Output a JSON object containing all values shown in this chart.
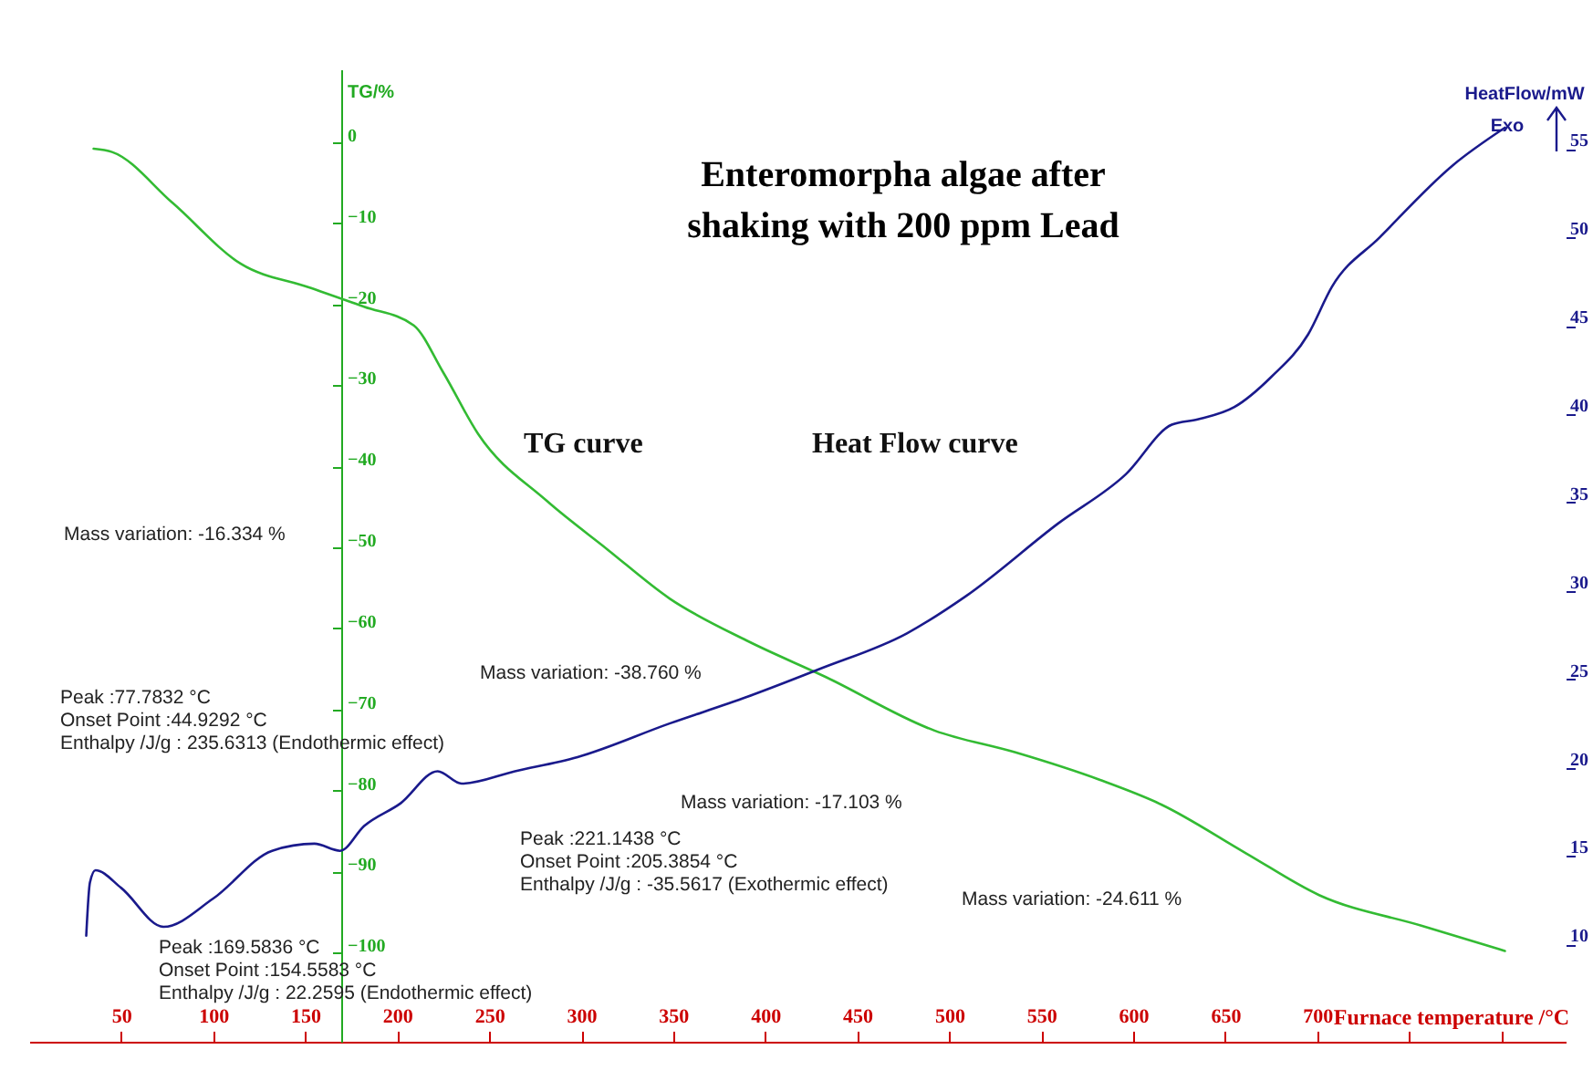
{
  "chart_data": {
    "type": "line",
    "title": "Enteromorpha algae after\nshaking with 200 ppm Lead",
    "xlabel": "Furnace temperature /°C",
    "ylabel": "TG/%",
    "y2label": "HeatFlow/mW",
    "xlim": [
      0,
      835
    ],
    "xticks": [
      50,
      100,
      150,
      200,
      250,
      300,
      350,
      400,
      450,
      500,
      550,
      600,
      650,
      700,
      {
        "value": 750,
        "label": null
      },
      {
        "value": 800,
        "label": null
      }
    ],
    "ylim": [
      -111,
      9
    ],
    "yticks": [
      0,
      -10,
      -20,
      -30,
      -40,
      -50,
      -60,
      -70,
      -80,
      -90,
      -100
    ],
    "y2lim": [
      4.5,
      59.5
    ],
    "y2ticks": [
      10,
      15,
      20,
      25,
      30,
      35,
      40,
      45,
      50,
      55
    ],
    "series": [
      {
        "name": "TG curve",
        "color": "#33bb33",
        "x": [
          35,
          45,
          78,
          115,
          152,
          182,
          209,
          225,
          244,
          281,
          314,
          348,
          390,
          433,
          492,
          536,
          582,
          615,
          661,
          701,
          757,
          802
        ],
        "values": [
          -0.8,
          -1.2,
          -7.5,
          -15,
          -17.9,
          -20.3,
          -22.6,
          -28.4,
          -36,
          -44.2,
          -50.2,
          -56.3,
          -61.5,
          -66,
          -72.6,
          -75.3,
          -78.7,
          -81.7,
          -87.7,
          -92.9,
          -96.7,
          -99.8
        ]
      },
      {
        "name": "Heat Flow curve",
        "color": "#1a1a8c",
        "axis": "y2",
        "x": [
          31,
          33,
          36,
          50,
          73,
          100,
          132,
          155,
          169,
          182,
          202,
          222,
          235,
          264,
          298,
          348,
          390,
          430,
          477,
          509,
          559,
          596,
          621,
          635,
          655,
          675,
          695,
          708,
          734,
          774,
          802
        ],
        "values": [
          10.5,
          13.5,
          14.2,
          13.2,
          11,
          12.6,
          15.3,
          15.7,
          15.3,
          16.7,
          18,
          19.8,
          19.1,
          19.8,
          20.6,
          22.5,
          24,
          25.6,
          27.6,
          29.7,
          33.8,
          36.6,
          39.4,
          39.7,
          40.4,
          42.1,
          44.5,
          47.2,
          50,
          54.1,
          56.2
        ]
      }
    ],
    "annotations": [
      "Mass variation: -16.334 %",
      "Mass variation: -38.760 %",
      "Mass variation: -17.103 %",
      "Mass variation: -24.611 %",
      "Peak :77.7832 °C\nOnset Point :44.9292 °C\nEnthalpy /J/g : 235.6313 (Endothermic effect)",
      "Peak :221.1438 °C\nOnset Point :205.3854 °C\nEnthalpy /J/g : -35.5617 (Exothermic effect)",
      "Peak :169.5836 °C\nOnset Point :154.5583 °C\nEnthalpy /J/g : 22.2595 (Endothermic effect)",
      "Exo"
    ]
  }
}
